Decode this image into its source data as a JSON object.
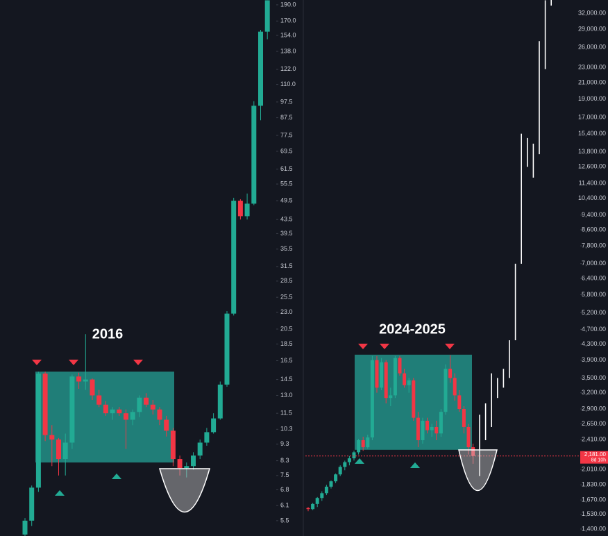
{
  "chart_data": [
    {
      "type": "candlestick",
      "annotation": "2016",
      "log_scale": true,
      "up_color": "#22ab94",
      "down_color": "#f23645",
      "zone_color": "#26a69a",
      "zone": [
        8.2,
        15.3
      ],
      "ylim": [
        4.95,
        196.4
      ],
      "yticks": [
        {
          "value": 190,
          "label": "190.0"
        },
        {
          "value": 170,
          "label": "170.0"
        },
        {
          "value": 154,
          "label": "154.0"
        },
        {
          "value": 138,
          "label": "138.0"
        },
        {
          "value": 122,
          "label": "122.0"
        },
        {
          "value": 110,
          "label": "110.0"
        },
        97.5,
        87.5,
        77.5,
        69.5,
        61.5,
        55.5,
        49.5,
        43.5,
        39.5,
        35.5,
        31.5,
        28.5,
        25.5,
        {
          "value": 23,
          "label": "23.0"
        },
        20.5,
        18.5,
        16.5,
        14.5,
        {
          "value": 13,
          "label": "13.0"
        },
        11.5,
        10.3,
        9.3,
        8.3,
        7.5,
        6.8,
        6.1,
        5.5
      ],
      "ohlc": [
        [
          5.0,
          5.6,
          4.9,
          5.5
        ],
        [
          5.5,
          7.0,
          5.3,
          6.9
        ],
        [
          6.9,
          15.3,
          6.7,
          15.1
        ],
        [
          15.1,
          15.3,
          9.5,
          9.9
        ],
        [
          9.9,
          10.6,
          8.0,
          9.6
        ],
        [
          9.6,
          9.7,
          7.5,
          8.4
        ],
        [
          8.4,
          10.0,
          7.5,
          9.4
        ],
        [
          9.4,
          15.0,
          9.0,
          14.8
        ],
        [
          14.8,
          15.2,
          13.6,
          14.3
        ],
        [
          14.3,
          19.8,
          13.5,
          14.5
        ],
        [
          14.5,
          14.6,
          12.6,
          13.0
        ],
        [
          13.0,
          13.5,
          12.0,
          12.2
        ],
        [
          12.2,
          12.5,
          11.3,
          11.5
        ],
        [
          11.5,
          12.0,
          11.0,
          11.8
        ],
        [
          11.8,
          12.0,
          11.3,
          11.5
        ],
        [
          11.5,
          11.8,
          9.0,
          11.0
        ],
        [
          11.0,
          11.8,
          10.6,
          11.6
        ],
        [
          11.6,
          13.0,
          11.2,
          12.8
        ],
        [
          12.8,
          13.2,
          12.0,
          12.2
        ],
        [
          12.2,
          12.6,
          11.4,
          11.8
        ],
        [
          11.8,
          12.0,
          10.6,
          11.0
        ],
        [
          11.0,
          11.3,
          9.8,
          10.2
        ],
        [
          10.2,
          10.4,
          8.0,
          8.4
        ],
        [
          8.4,
          8.6,
          7.5,
          7.9
        ],
        [
          7.9,
          8.2,
          7.4,
          8.0
        ],
        [
          8.0,
          8.8,
          7.8,
          8.6
        ],
        [
          8.6,
          9.6,
          8.4,
          9.4
        ],
        [
          9.4,
          10.4,
          9.2,
          10.1
        ],
        [
          10.1,
          11.5,
          10.0,
          11.1
        ],
        [
          11.1,
          14.3,
          11.0,
          14.0
        ],
        [
          14.0,
          23.2,
          13.8,
          22.8
        ],
        [
          22.8,
          50.5,
          22.5,
          49.5
        ],
        [
          49.5,
          50.0,
          43.5,
          44.5
        ],
        [
          44.5,
          52.0,
          43.5,
          48.5
        ],
        [
          48.5,
          98.0,
          48.0,
          95.0
        ],
        [
          95.0,
          160.0,
          86.0,
          158.0
        ],
        [
          158.0,
          196.0,
          150.0,
          196.0
        ]
      ]
    },
    {
      "type": "candlestick",
      "annotation": "2024-2025",
      "log_scale": true,
      "up_color": "#22ab94",
      "down_color": "#f23645",
      "zone_color": "#26a69a",
      "zone": [
        2264,
        4031
      ],
      "ylim": [
        1342,
        34660
      ],
      "yticks": [
        {
          "value": 32000,
          "label": "32,000.00"
        },
        {
          "value": 29000,
          "label": "29,000.00"
        },
        {
          "value": 26000,
          "label": "26,000.00"
        },
        {
          "value": 23000,
          "label": "23,000.00"
        },
        {
          "value": 21000,
          "label": "21,000.00"
        },
        {
          "value": 19000,
          "label": "19,000.00"
        },
        {
          "value": 17000,
          "label": "17,000.00"
        },
        {
          "value": 15400,
          "label": "15,400.00"
        },
        {
          "value": 13800,
          "label": "13,800.00"
        },
        {
          "value": 12600,
          "label": "12,600.00"
        },
        {
          "value": 11400,
          "label": "11,400.00"
        },
        {
          "value": 10400,
          "label": "10,400.00"
        },
        {
          "value": 9400,
          "label": "9,400.00"
        },
        {
          "value": 8600,
          "label": "8,600.00"
        },
        {
          "value": 7800,
          "label": "7,800.00"
        },
        {
          "value": 7000,
          "label": "7,000.00"
        },
        {
          "value": 6400,
          "label": "6,400.00"
        },
        {
          "value": 5800,
          "label": "5,800.00"
        },
        {
          "value": 5200,
          "label": "5,200.00"
        },
        {
          "value": 4700,
          "label": "4,700.00"
        },
        {
          "value": 4300,
          "label": "4,300.00"
        },
        {
          "value": 3900,
          "label": "3,900.00"
        },
        {
          "value": 3500,
          "label": "3,500.00"
        },
        {
          "value": 3200,
          "label": "3,200.00"
        },
        {
          "value": 2900,
          "label": "2,900.00"
        },
        {
          "value": 2650,
          "label": "2,650.00"
        },
        {
          "value": 2410,
          "label": "2,410.00"
        },
        {
          "value": 2010,
          "label": "2,010.00"
        },
        {
          "value": 1830,
          "label": "1,830.00"
        },
        {
          "value": 1670,
          "label": "1,670.00"
        },
        {
          "value": 1530,
          "label": "1,530.00"
        },
        {
          "value": 1400,
          "label": "1,400.00"
        }
      ],
      "price_label": {
        "value": 2181,
        "label": "2,181.00",
        "countdown": "8d 10h"
      },
      "ohlc": [
        [
          1590,
          1600,
          1560,
          1580
        ],
        [
          1580,
          1640,
          1570,
          1630
        ],
        [
          1630,
          1700,
          1600,
          1690
        ],
        [
          1690,
          1760,
          1660,
          1740
        ],
        [
          1740,
          1830,
          1720,
          1810
        ],
        [
          1810,
          1880,
          1790,
          1870
        ],
        [
          1870,
          1960,
          1850,
          1950
        ],
        [
          1950,
          2060,
          1930,
          2040
        ],
        [
          2040,
          2120,
          2000,
          2100
        ],
        [
          2100,
          2180,
          2060,
          2150
        ],
        [
          2150,
          2250,
          2120,
          2230
        ],
        [
          2230,
          2420,
          2200,
          2400
        ],
        [
          2400,
          2450,
          2250,
          2300
        ],
        [
          2300,
          2480,
          2280,
          2440
        ],
        [
          2440,
          4000,
          2400,
          3900
        ],
        [
          3900,
          4000,
          3200,
          3300
        ],
        [
          3300,
          3950,
          3250,
          3850
        ],
        [
          3850,
          3900,
          3000,
          3100
        ],
        [
          3100,
          3300,
          2950,
          3150
        ],
        [
          3150,
          4000,
          3100,
          3950
        ],
        [
          3950,
          4000,
          3550,
          3600
        ],
        [
          3600,
          3700,
          3300,
          3350
        ],
        [
          3350,
          3500,
          3200,
          3450
        ],
        [
          3450,
          3500,
          2700,
          2750
        ],
        [
          2750,
          2850,
          2300,
          2400
        ],
        [
          2400,
          2750,
          2350,
          2700
        ],
        [
          2700,
          2750,
          2500,
          2550
        ],
        [
          2550,
          2650,
          2450,
          2600
        ],
        [
          2600,
          2700,
          2400,
          2500
        ],
        [
          2500,
          2900,
          2450,
          2850
        ],
        [
          2850,
          3800,
          2800,
          3700
        ],
        [
          3700,
          4020,
          3400,
          3500
        ],
        [
          3500,
          3600,
          3050,
          3150
        ],
        [
          3150,
          3250,
          2850,
          2900
        ],
        [
          2900,
          2950,
          2500,
          2600
        ],
        [
          2600,
          2650,
          2200,
          2300
        ],
        [
          2300,
          2350,
          2080,
          2181
        ]
      ],
      "projection": {
        "color": "#ffffff",
        "ranges": [
          [
            1930,
            2800
          ],
          [
            2400,
            3000
          ],
          [
            2600,
            3600
          ],
          [
            3100,
            3500
          ],
          [
            3300,
            3700
          ],
          [
            3500,
            4400
          ],
          [
            4400,
            7000
          ],
          [
            7000,
            15400
          ],
          [
            12600,
            15000
          ],
          [
            11800,
            14500
          ],
          [
            13600,
            27000
          ],
          [
            22800,
            34600
          ],
          [
            33500,
            34660
          ]
        ]
      }
    }
  ]
}
